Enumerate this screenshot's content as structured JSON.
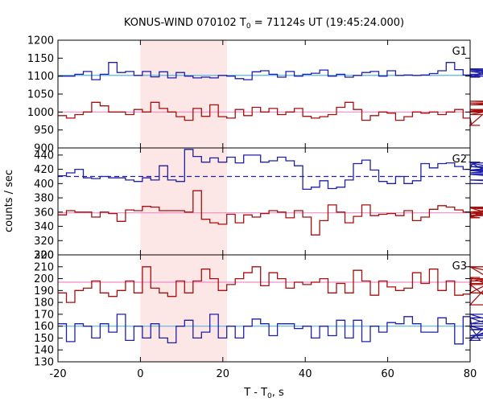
{
  "chart_data": {
    "type": "line",
    "title_prefix": "KONUS-WIND 070102 T",
    "title_sub": "0",
    "title_suffix": " = 71124s UT (19:45:24.000)",
    "xlabel_prefix": "T - T",
    "xlabel_sub": "0",
    "xlabel_suffix": ", s",
    "ylabel": "counts / sec",
    "xlim": [
      -20,
      80
    ],
    "xticks": [
      -20,
      0,
      20,
      40,
      60,
      80
    ],
    "bin_width": 2.048,
    "x_start": -20,
    "highlight_interval": [
      0,
      21
    ],
    "colors": {
      "blue": "#1f1fa8",
      "red": "#a80f0f",
      "blue_fit": "#55b6e8",
      "red_fit": "#f08ec8",
      "highlight": "#fde6e6",
      "blue_dashed": "#1f1fa8"
    },
    "panels": [
      {
        "label": "G1",
        "ylim": [
          900,
          1200
        ],
        "yticks": [
          900,
          950,
          1000,
          1050,
          1100,
          1150,
          1200
        ],
        "series": [
          {
            "color": "blue",
            "values": [
              1100,
              1100,
              1105,
              1113,
              1090,
              1105,
              1138,
              1110,
              1113,
              1102,
              1113,
              1098,
              1112,
              1095,
              1110,
              1100,
              1095,
              1097,
              1095,
              1102,
              1100,
              1093,
              1090,
              1112,
              1115,
              1105,
              1097,
              1113,
              1100,
              1105,
              1108,
              1117,
              1100,
              1105,
              1097,
              1102,
              1110,
              1113,
              1100,
              1115,
              1102,
              1103,
              1102,
              1103,
              1107,
              1115,
              1138,
              1118,
              1103,
              1103,
              1097,
              1117,
              1113,
              1100,
              1120,
              1100,
              1100,
              1105
            ],
            "fit": {
              "color": "blue_fit",
              "value": 1102,
              "dashed": false
            }
          },
          {
            "color": "red",
            "values": [
              990,
              983,
              993,
              1000,
              1027,
              1017,
              1000,
              1000,
              993,
              1007,
              1000,
              1027,
              1010,
              1000,
              987,
              977,
              1010,
              988,
              1020,
              987,
              983,
              1007,
              990,
              1013,
              1000,
              1010,
              993,
              1000,
              1010,
              988,
              983,
              987,
              993,
              1013,
              1027,
              1007,
              977,
              990,
              1000,
              997,
              977,
              987,
              1000,
              997,
              1000,
              993,
              1000,
              1007,
              983,
              963,
              963,
              1007,
              1000,
              1003,
              993,
              1020,
              1030,
              1025
            ],
            "fit": {
              "color": "red_fit",
              "value": 1000,
              "dashed": false
            }
          }
        ]
      },
      {
        "label": "G2",
        "ylim": [
          300,
          450
        ],
        "yticks": [
          300,
          320,
          340,
          360,
          380,
          400,
          420,
          440
        ],
        "series": [
          {
            "color": "blue",
            "values": [
              411,
              415,
              420,
              408,
              407,
              410,
              408,
              408,
              405,
              403,
              408,
              405,
              425,
              405,
              403,
              448,
              438,
              430,
              436,
              430,
              437,
              429,
              440,
              440,
              430,
              432,
              437,
              432,
              425,
              392,
              395,
              404,
              393,
              395,
              405,
              428,
              433,
              419,
              403,
              400,
              410,
              400,
              404,
              428,
              422,
              428,
              429,
              424,
              420,
              426,
              430,
              415,
              419,
              424,
              418,
              429,
              413,
              405,
              400
            ],
            "fit": {
              "color": "blue_dashed",
              "value": 410,
              "dashed": true
            }
          },
          {
            "color": "red",
            "values": [
              356,
              362,
              360,
              360,
              353,
              360,
              358,
              347,
              363,
              362,
              368,
              367,
              362,
              362,
              362,
              360,
              390,
              350,
              345,
              343,
              357,
              345,
              356,
              353,
              358,
              362,
              360,
              352,
              362,
              353,
              328,
              348,
              370,
              360,
              345,
              354,
              370,
              355,
              357,
              358,
              355,
              362,
              348,
              353,
              364,
              369,
              367,
              363,
              360,
              354,
              352,
              366,
              355,
              360,
              367,
              358,
              366,
              358
            ],
            "fit": {
              "color": "red_fit",
              "value": 359,
              "dashed": false
            }
          }
        ]
      },
      {
        "label": "G3",
        "ylim": [
          130,
          220
        ],
        "yticks": [
          130,
          140,
          150,
          160,
          170,
          180,
          190,
          200,
          210,
          220
        ],
        "series": [
          {
            "color": "red",
            "values": [
              188,
              180,
              190,
              192,
              198,
              188,
              185,
              190,
              198,
              188,
              210,
              192,
              188,
              185,
              198,
              188,
              198,
              208,
              200,
              190,
              195,
              200,
              205,
              210,
              194,
              205,
              200,
              192,
              197,
              195,
              197,
              200,
              188,
              196,
              188,
              207,
              198,
              186,
              198,
              193,
              190,
              192,
              205,
              196,
              208,
              190,
              198,
              186,
              187,
              201,
              201,
              195,
              178,
              210,
              188,
              210,
              198,
              200,
              196
            ],
            "fit": {
              "color": "red_fit",
              "value": 197,
              "dashed": false
            }
          },
          {
            "color": "blue",
            "values": [
              162,
              147,
              162,
              160,
              150,
              162,
              155,
              170,
              148,
              160,
              150,
              162,
              150,
              146,
              160,
              165,
              150,
              155,
              170,
              150,
              160,
              150,
              160,
              166,
              162,
              152,
              162,
              162,
              158,
              160,
              150,
              160,
              152,
              165,
              150,
              165,
              147,
              160,
              155,
              163,
              162,
              168,
              162,
              155,
              155,
              167,
              162,
              145,
              168,
              160,
              148,
              162,
              167,
              157,
              160,
              150,
              170,
              152,
              160
            ],
            "fit": {
              "color": "blue_fit",
              "value": 160,
              "dashed": false
            }
          }
        ]
      }
    ]
  }
}
